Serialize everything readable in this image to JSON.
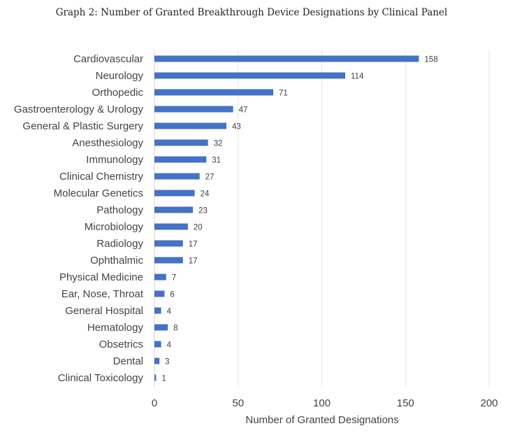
{
  "chart_data": {
    "type": "bar",
    "orientation": "horizontal",
    "title": "Graph 2: Number of Granted Breakthrough Device Designations by Clinical Panel",
    "xlabel": "Number of Granted Designations",
    "ylabel": "",
    "xlim": [
      0,
      200
    ],
    "xticks": [
      0,
      50,
      100,
      150,
      200
    ],
    "grid": "vertical",
    "legend": "none",
    "bar_color": "#4472C4",
    "categories": [
      "Cardiovascular",
      "Neurology",
      "Orthopedic",
      "Gastroenterology & Urology",
      "General & Plastic Surgery",
      "Anesthesiology",
      "Immunology",
      "Clinical Chemistry",
      "Molecular Genetics",
      "Pathology",
      "Microbiology",
      "Radiology",
      "Ophthalmic",
      "Physical Medicine",
      "Ear, Nose, Throat",
      "General Hospital",
      "Hematology",
      "Obsetrics",
      "Dental",
      "Clinical Toxicology"
    ],
    "values": [
      158,
      114,
      71,
      47,
      43,
      32,
      31,
      27,
      24,
      23,
      20,
      17,
      17,
      7,
      6,
      4,
      8,
      4,
      3,
      1
    ]
  }
}
